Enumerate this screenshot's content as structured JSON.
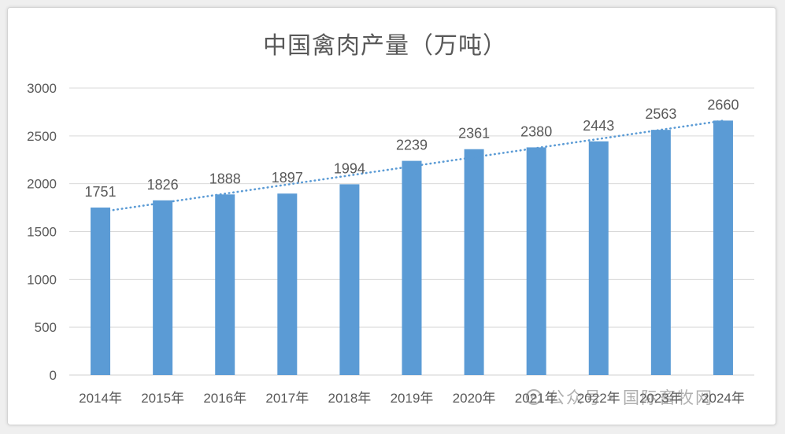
{
  "chart_data": {
    "type": "bar",
    "title": "中国禽肉产量（万吨）",
    "categories": [
      "2014年",
      "2015年",
      "2016年",
      "2017年",
      "2018年",
      "2019年",
      "2020年",
      "2021年",
      "2022年",
      "2023年",
      "2024年"
    ],
    "values": [
      1751,
      1826,
      1888,
      1897,
      1994,
      2239,
      2361,
      2380,
      2443,
      2563,
      2660
    ],
    "ylim": [
      0,
      3000
    ],
    "yticks": [
      0,
      500,
      1000,
      1500,
      2000,
      2500,
      3000
    ],
    "grid": true,
    "legend": false,
    "data_labels": true,
    "trendline": "linear",
    "bar_color": "#5b9bd5",
    "trendline_color": "#5b9bd5"
  },
  "watermark": {
    "icon": "wechat-icon",
    "text": "公众号 · 国际畜牧网"
  }
}
